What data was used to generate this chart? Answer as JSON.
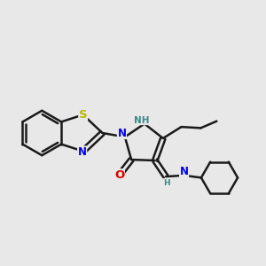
{
  "background_color": "#e8e8e8",
  "bond_color": "#1a1a1a",
  "bond_width": 1.8,
  "atom_colors": {
    "S": "#b8b800",
    "N": "#0000ee",
    "O": "#dd0000",
    "NH": "#3a8a8a",
    "H": "#3a8a8a",
    "C": "#1a1a1a"
  },
  "font_size_atom": 8.5,
  "font_size_small": 6.5
}
